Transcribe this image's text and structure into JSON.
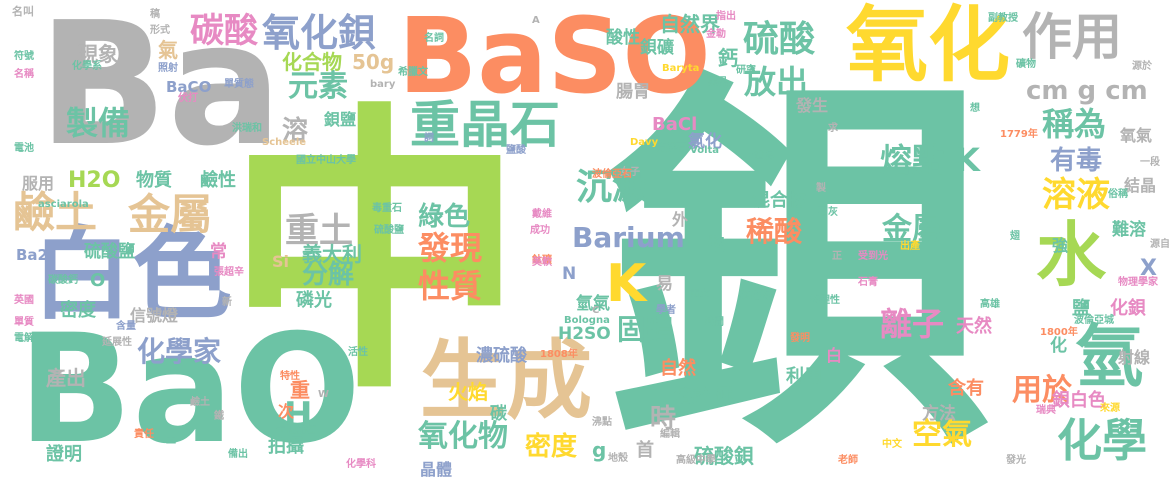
{
  "palette": {
    "green": "#6cc3a5",
    "lime": "#a6d854",
    "orange": "#fc8d62",
    "blue": "#8da0cb",
    "pink": "#e78ac3",
    "gold": "#e5c494",
    "yellow": "#ffd92f",
    "gray": "#b3b3b3"
  },
  "words": [
    {
      "text": "中",
      "color": "#a6d854"
    },
    {
      "text": "鋇",
      "color": "#6cc3a5"
    },
    {
      "text": "Ba",
      "color": "#b3b3b3"
    },
    {
      "text": "BaO",
      "color": "#6cc3a5"
    },
    {
      "text": "BaSO",
      "color": "#fc8d62"
    },
    {
      "text": "氧化",
      "color": "#ffd92f"
    },
    {
      "text": "白色",
      "color": "#8da0cb"
    },
    {
      "text": "生成",
      "color": "#e5c494"
    },
    {
      "text": "重晶石",
      "color": "#6cc3a5"
    },
    {
      "text": "作用",
      "color": "#b3b3b3"
    },
    {
      "text": "水",
      "color": "#a6d854"
    },
    {
      "text": "氫",
      "color": "#6cc3a5"
    },
    {
      "text": "化學",
      "color": "#6cc3a5"
    },
    {
      "text": "氧化鋇",
      "color": "#8da0cb"
    },
    {
      "text": "硫酸",
      "color": "#6cc3a5"
    },
    {
      "text": "碳酸",
      "color": "#e78ac3"
    },
    {
      "text": "金屬",
      "color": "#e5c494"
    },
    {
      "text": "鹼土",
      "color": "#e5c494"
    },
    {
      "text": "K",
      "color": "#ffd92f"
    },
    {
      "text": "元素",
      "color": "#6cc3a5"
    },
    {
      "text": "製備",
      "color": "#6cc3a5"
    },
    {
      "text": "重土",
      "color": "#b3b3b3"
    },
    {
      "text": "發現",
      "color": "#fc8d62"
    },
    {
      "text": "性質",
      "color": "#fc8d62"
    },
    {
      "text": "綠色",
      "color": "#6cc3a5"
    },
    {
      "text": "沉澱",
      "color": "#6cc3a5"
    },
    {
      "text": "Barium",
      "color": "#8da0cb"
    },
    {
      "text": "熔點 K",
      "color": "#6cc3a5"
    },
    {
      "text": "稱為",
      "color": "#6cc3a5"
    },
    {
      "text": "溶液",
      "color": "#ffd92f"
    },
    {
      "text": "有毒",
      "color": "#8da0cb"
    },
    {
      "text": "放出",
      "color": "#6cc3a5"
    },
    {
      "text": "金屬",
      "color": "#6cc3a5"
    },
    {
      "text": "稀酸",
      "color": "#fc8d62"
    },
    {
      "text": "離子",
      "color": "#e78ac3"
    },
    {
      "text": "固體",
      "color": "#6cc3a5"
    },
    {
      "text": "氧化物",
      "color": "#6cc3a5"
    },
    {
      "text": "空氣",
      "color": "#ffd92f"
    },
    {
      "text": "用於",
      "color": "#fc8d62"
    },
    {
      "text": "化學家",
      "color": "#8da0cb"
    },
    {
      "text": "H2O",
      "color": "#a6d854"
    },
    {
      "text": "分解",
      "color": "#6cc3a5"
    },
    {
      "text": "義大利",
      "color": "#6cc3a5"
    },
    {
      "text": "H",
      "color": "#6cc3a5"
    },
    {
      "text": "溶",
      "color": "#b3b3b3"
    },
    {
      "text": "cm g cm",
      "color": "#b3b3b3"
    },
    {
      "text": "時",
      "color": "#b3b3b3"
    },
    {
      "text": "密度",
      "color": "#ffd92f"
    },
    {
      "text": "硫酸鋇",
      "color": "#6cc3a5"
    },
    {
      "text": "自然界",
      "color": "#6cc3a5"
    },
    {
      "text": "化合物",
      "color": "#a6d854"
    },
    {
      "text": "50g",
      "color": "#e5c494"
    },
    {
      "text": "鋇鹽",
      "color": "#6cc3a5"
    },
    {
      "text": "BaCO",
      "color": "#8da0cb"
    },
    {
      "text": "氯化",
      "color": "#8da0cb"
    },
    {
      "text": "酸性",
      "color": "#6cc3a5"
    },
    {
      "text": "鋇礦",
      "color": "#6cc3a5"
    },
    {
      "text": "腸胃",
      "color": "#b3b3b3"
    },
    {
      "text": "鈣",
      "color": "#6cc3a5"
    },
    {
      "text": "BaCl",
      "color": "#e78ac3"
    },
    {
      "text": "現象",
      "color": "#b3b3b3"
    },
    {
      "text": "氣",
      "color": "#e5c494"
    },
    {
      "text": "服用",
      "color": "#b3b3b3"
    },
    {
      "text": "物質",
      "color": "#6cc3a5"
    },
    {
      "text": "鹼性",
      "color": "#6cc3a5"
    },
    {
      "text": "混合物",
      "color": "#6cc3a5"
    },
    {
      "text": "外",
      "color": "#b3b3b3"
    },
    {
      "text": "熱",
      "color": "#6cc3a5"
    },
    {
      "text": "硫酸鹽",
      "color": "#6cc3a5"
    },
    {
      "text": "磷光",
      "color": "#6cc3a5"
    },
    {
      "text": "常",
      "color": "#e78ac3"
    },
    {
      "text": "Ba2",
      "color": "#8da0cb"
    },
    {
      "text": "O",
      "color": "#6cc3a5"
    },
    {
      "text": "密度",
      "color": "#6cc3a5"
    },
    {
      "text": "信號燈",
      "color": "#b3b3b3"
    },
    {
      "text": "產出",
      "color": "#b3b3b3"
    },
    {
      "text": "證明",
      "color": "#6cc3a5"
    },
    {
      "text": "晶體",
      "color": "#8da0cb"
    },
    {
      "text": "碳",
      "color": "#6cc3a5"
    },
    {
      "text": "溶於",
      "color": "#6cc3a5"
    },
    {
      "text": "硫",
      "color": "#6cc3a5"
    },
    {
      "text": "首",
      "color": "#b3b3b3"
    },
    {
      "text": "g",
      "color": "#6cc3a5"
    },
    {
      "text": "濃硫酸",
      "color": "#8da0cb"
    },
    {
      "text": "火焰",
      "color": "#ffd92f"
    },
    {
      "text": "自然",
      "color": "#fc8d62"
    },
    {
      "text": "氫氣",
      "color": "#6cc3a5"
    },
    {
      "text": "H2SO",
      "color": "#6cc3a5"
    },
    {
      "text": "重",
      "color": "#fc8d62"
    },
    {
      "text": "次",
      "color": "#fc8d62"
    },
    {
      "text": "拍攝",
      "color": "#6cc3a5"
    },
    {
      "text": "含有",
      "color": "#fc8d62"
    },
    {
      "text": "方法",
      "color": "#b3b3b3"
    },
    {
      "text": "利用",
      "color": "#6cc3a5"
    },
    {
      "text": "鋇白色",
      "color": "#e78ac3"
    },
    {
      "text": "化鋇",
      "color": "#e78ac3"
    },
    {
      "text": "鹽",
      "color": "#6cc3a5"
    },
    {
      "text": "天然",
      "color": "#e78ac3"
    },
    {
      "text": "易",
      "color": "#b3b3b3"
    },
    {
      "text": "X",
      "color": "#8da0cb"
    },
    {
      "text": "難溶",
      "color": "#6cc3a5"
    },
    {
      "text": "強",
      "color": "#6cc3a5"
    },
    {
      "text": "N",
      "color": "#8da0cb"
    },
    {
      "text": "結晶",
      "color": "#b3b3b3"
    },
    {
      "text": "氧氣",
      "color": "#b3b3b3"
    },
    {
      "text": "射線",
      "color": "#b3b3b3"
    },
    {
      "text": "化",
      "color": "#6cc3a5"
    },
    {
      "text": "發生",
      "color": "#b3b3b3"
    },
    {
      "text": "白",
      "color": "#e78ac3"
    },
    {
      "text": "Si",
      "color": "#e5c494"
    },
    {
      "text": "名叫",
      "color": "#b3b3b3"
    },
    {
      "text": "稿",
      "color": "#b3b3b3"
    },
    {
      "text": "形式",
      "color": "#b3b3b3"
    },
    {
      "text": "照射",
      "color": "#8da0cb"
    },
    {
      "text": "化學系",
      "color": "#6cc3a5"
    },
    {
      "text": "符號",
      "color": "#6cc3a5"
    },
    {
      "text": "名稱",
      "color": "#e78ac3"
    },
    {
      "text": "伏打",
      "color": "#e78ac3"
    },
    {
      "text": "單質態",
      "color": "#8da0cb"
    },
    {
      "text": "洪瑞和",
      "color": "#6cc3a5"
    },
    {
      "text": "Scheele",
      "color": "#e5c494"
    },
    {
      "text": "國立中山大學",
      "color": "#6cc3a5"
    },
    {
      "text": "bary",
      "color": "#b3b3b3"
    },
    {
      "text": "希臘文",
      "color": "#6cc3a5"
    },
    {
      "text": "名詞",
      "color": "#6cc3a5"
    },
    {
      "text": "Baryta",
      "color": "#ffd92f"
    },
    {
      "text": "黑晶",
      "color": "#6cc3a5"
    },
    {
      "text": "金勒",
      "color": "#e78ac3"
    },
    {
      "text": "指出",
      "color": "#e78ac3"
    },
    {
      "text": "研究",
      "color": "#6cc3a5"
    },
    {
      "text": "副教授",
      "color": "#6cc3a5"
    },
    {
      "text": "礦物",
      "color": "#6cc3a5"
    },
    {
      "text": "源於",
      "color": "#b3b3b3"
    },
    {
      "text": "方解石",
      "color": "#6cc3a5"
    },
    {
      "text": "Davy",
      "color": "#ffd92f"
    },
    {
      "text": "Volta",
      "color": "#6cc3a5"
    },
    {
      "text": "1779年",
      "color": "#fc8d62"
    },
    {
      "text": "17世紀",
      "color": "#6cc3a5"
    },
    {
      "text": "女子",
      "color": "#b3b3b3"
    },
    {
      "text": "波倫亞石",
      "color": "#fc8d62"
    },
    {
      "text": "想",
      "color": "#6cc3a5"
    },
    {
      "text": "一段",
      "color": "#b3b3b3"
    },
    {
      "text": "俗稱",
      "color": "#6cc3a5"
    },
    {
      "text": "石灰",
      "color": "#6cc3a5"
    },
    {
      "text": "受到光",
      "color": "#e78ac3"
    },
    {
      "text": "石膏",
      "color": "#e78ac3"
    },
    {
      "text": "物理學家",
      "color": "#e78ac3"
    },
    {
      "text": "電池",
      "color": "#6cc3a5"
    },
    {
      "text": "毒重石",
      "color": "#6cc3a5"
    },
    {
      "text": "鈦礦",
      "color": "#fc8d62"
    },
    {
      "text": "硫酸鹽",
      "color": "#6cc3a5"
    },
    {
      "text": "碳酸鈣",
      "color": "#6cc3a5"
    },
    {
      "text": "張超辛",
      "color": "#e78ac3"
    },
    {
      "text": "戴維",
      "color": "#e78ac3"
    },
    {
      "text": "成功",
      "color": "#e78ac3"
    },
    {
      "text": "美軟",
      "color": "#e78ac3"
    },
    {
      "text": "市立",
      "color": "#6cc3a5"
    },
    {
      "text": "硫化物",
      "color": "#6cc3a5"
    },
    {
      "text": "物理性",
      "color": "#6cc3a5"
    },
    {
      "text": "高雄",
      "color": "#6cc3a5"
    },
    {
      "text": "波倫亞城",
      "color": "#6cc3a5"
    },
    {
      "text": "1800年",
      "color": "#fc8d62"
    },
    {
      "text": "Bologna",
      "color": "#6cc3a5"
    },
    {
      "text": "學者",
      "color": "#8da0cb"
    },
    {
      "text": "含量",
      "color": "#8da0cb"
    },
    {
      "text": "電解",
      "color": "#6cc3a5"
    },
    {
      "text": "英國",
      "color": "#e78ac3"
    },
    {
      "text": "單質",
      "color": "#e78ac3"
    },
    {
      "text": "延展性",
      "color": "#b3b3b3"
    },
    {
      "text": "asciarola",
      "color": "#6cc3a5"
    },
    {
      "text": "新",
      "color": "#b3b3b3"
    },
    {
      "text": "活性",
      "color": "#6cc3a5"
    },
    {
      "text": "1808年",
      "color": "#fc8d62"
    },
    {
      "text": "發明",
      "color": "#fc8d62"
    },
    {
      "text": "特性",
      "color": "#fc8d62"
    },
    {
      "text": "鹼土",
      "color": "#b3b3b3"
    },
    {
      "text": "卡仙羅拉",
      "color": "#6cc3a5"
    },
    {
      "text": "責任",
      "color": "#fc8d62"
    },
    {
      "text": "備出",
      "color": "#6cc3a5"
    },
    {
      "text": "化學科",
      "color": "#e78ac3"
    },
    {
      "text": "沸點",
      "color": "#b3b3b3"
    },
    {
      "text": "編輯",
      "color": "#b3b3b3"
    },
    {
      "text": "地殼",
      "color": "#b3b3b3"
    },
    {
      "text": "高級中學",
      "color": "#b3b3b3"
    },
    {
      "text": "老師",
      "color": "#fc8d62"
    },
    {
      "text": "中文",
      "color": "#ffd92f"
    },
    {
      "text": "瑞典",
      "color": "#e78ac3"
    },
    {
      "text": "發光",
      "color": "#b3b3b3"
    },
    {
      "text": "出產",
      "color": "#ffd92f"
    },
    {
      "text": "來源",
      "color": "#ffd92f"
    },
    {
      "text": "時間",
      "color": "#6cc3a5"
    },
    {
      "text": "正",
      "color": "#b3b3b3"
    },
    {
      "text": "製",
      "color": "#b3b3b3"
    },
    {
      "text": "源自",
      "color": "#b3b3b3"
    },
    {
      "text": "求",
      "color": "#b3b3b3"
    },
    {
      "text": "翅",
      "color": "#6cc3a5"
    },
    {
      "text": "A",
      "color": "#b3b3b3"
    },
    {
      "text": "C",
      "color": "#b3b3b3"
    },
    {
      "text": "土",
      "color": "#6cc3a5"
    },
    {
      "text": "鐵",
      "color": "#b3b3b3"
    },
    {
      "text": "W",
      "color": "#b3b3b3"
    },
    {
      "text": "詞",
      "color": "#8da0cb"
    },
    {
      "text": "鹽酸",
      "color": "#8da0cb"
    }
  ]
}
